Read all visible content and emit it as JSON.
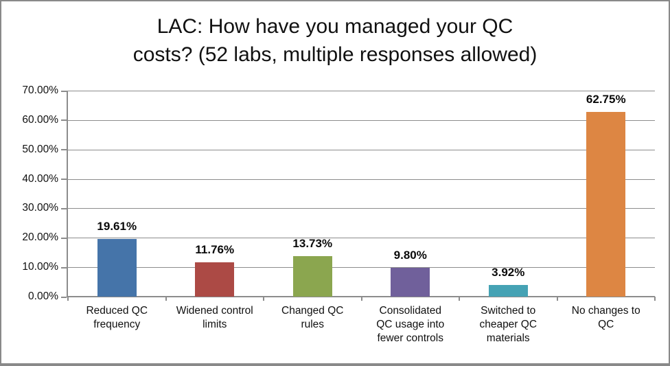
{
  "chart_data": {
    "type": "bar",
    "title": "LAC: How have you managed your QC costs? (52 labs, multiple responses allowed)",
    "title_lines": [
      "LAC: How have you managed your QC",
      "costs? (52 labs, multiple responses allowed)"
    ],
    "categories": [
      "Reduced QC frequency",
      "Widened control limits",
      "Changed QC rules",
      "Consolidated QC usage into fewer controls",
      "Switched to cheaper QC materials",
      "No changes to QC"
    ],
    "values": [
      19.61,
      11.76,
      13.73,
      9.8,
      3.92,
      62.75
    ],
    "value_labels": [
      "19.61%",
      "11.76%",
      "13.73%",
      "9.80%",
      "3.92%",
      "62.75%"
    ],
    "bar_colors": [
      "#4574A9",
      "#AC4A45",
      "#8BA64F",
      "#70609B",
      "#45A2B4",
      "#DD8643"
    ],
    "xlabel": "",
    "ylabel": "",
    "ylim": [
      0,
      70
    ],
    "y_ticks": [
      "0.00%",
      "10.00%",
      "20.00%",
      "30.00%",
      "40.00%",
      "50.00%",
      "60.00%",
      "70.00%"
    ],
    "grid": "horizontal gridlines on",
    "legend": "none",
    "axis_color": "#8c8c8c",
    "gridline_color": "#8c8c8c"
  }
}
